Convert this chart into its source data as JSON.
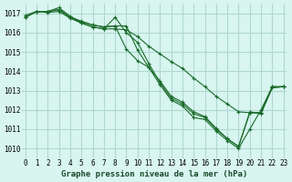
{
  "title": "Graphe pression niveau de la mer (hPa)",
  "background_color": "#d8f5f0",
  "grid_color": "#b0d8d0",
  "line_color": "#1a6b2a",
  "x_min": 0,
  "x_max": 23,
  "y_min": 1009.5,
  "y_max": 1017.5,
  "yticks": [
    1010,
    1011,
    1012,
    1013,
    1014,
    1015,
    1016,
    1017
  ],
  "xticks": [
    0,
    1,
    2,
    3,
    4,
    5,
    6,
    7,
    8,
    9,
    10,
    11,
    12,
    13,
    14,
    15,
    16,
    17,
    18,
    19,
    20,
    21,
    22,
    23
  ],
  "series": [
    [
      1016.8,
      1017.1,
      1017.1,
      1017.2,
      1016.8,
      1016.6,
      1016.4,
      1016.3,
      1016.35,
      1016.35,
      1015.1,
      1014.2,
      1013.3,
      1012.5,
      1012.2,
      1011.6,
      1011.5,
      1010.9,
      1010.4,
      1010.0,
      1011.0,
      1012.0,
      1013.2,
      1013.2
    ],
    [
      1016.8,
      1017.1,
      1017.1,
      1017.2,
      1016.8,
      1016.5,
      1016.3,
      1016.2,
      1016.8,
      1016.0,
      1015.5,
      1014.4,
      1013.4,
      1012.6,
      1012.3,
      1011.8,
      1011.6,
      1011.0,
      1010.5,
      1010.1,
      1011.9,
      1011.8,
      1013.2,
      1013.2
    ],
    [
      1016.8,
      1017.1,
      1017.1,
      1017.3,
      1016.85,
      1016.55,
      1016.4,
      1016.3,
      1016.35,
      1015.15,
      1014.55,
      1014.2,
      1013.5,
      1012.7,
      1012.4,
      1011.9,
      1011.65,
      1011.05,
      1010.5,
      1010.1,
      1011.85,
      1011.85,
      1013.15,
      1013.2
    ],
    [
      1016.9,
      1017.1,
      1017.05,
      1017.1,
      1016.75,
      1016.5,
      1016.3,
      1016.2,
      1016.2,
      1016.15,
      1015.8,
      1015.3,
      1014.9,
      1014.5,
      1014.15,
      1013.65,
      1013.2,
      1012.7,
      1012.3,
      1011.9,
      1011.85,
      1011.85,
      1013.15,
      1013.2
    ]
  ]
}
